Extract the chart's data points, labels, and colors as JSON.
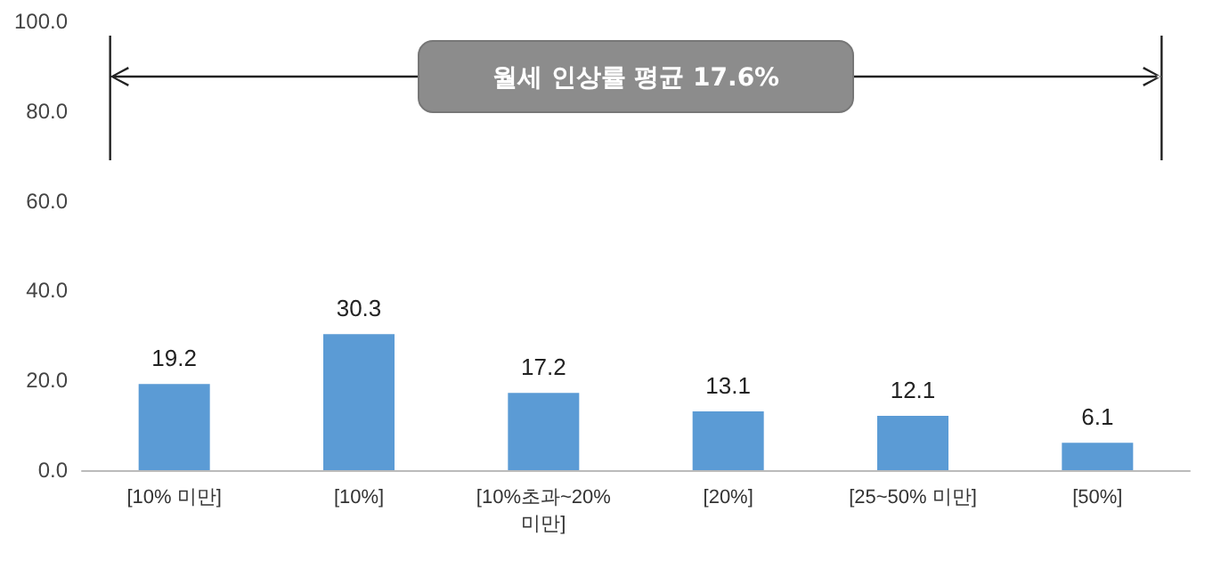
{
  "chart_data": {
    "type": "bar",
    "categories": [
      "[10% 미만]",
      "[10%]",
      "[10%초과~20% 미만]",
      "[20%]",
      "[25~50% 미만]",
      "[50%]"
    ],
    "values": [
      19.2,
      30.3,
      17.2,
      13.1,
      12.1,
      6.1
    ],
    "color": "#5b9bd5",
    "ylim": [
      0,
      100
    ],
    "yticks": [
      {
        "value": 0,
        "label": "0.0"
      },
      {
        "value": 20,
        "label": "20.0"
      },
      {
        "value": 40,
        "label": "40.0"
      },
      {
        "value": 60,
        "label": "60.0"
      },
      {
        "value": 80,
        "label": "80.0"
      },
      {
        "value": 100,
        "label": "100.0"
      }
    ],
    "data_labels": true,
    "grid": false,
    "annotations": [
      "월세 인상률 평균 17.6%"
    ]
  }
}
